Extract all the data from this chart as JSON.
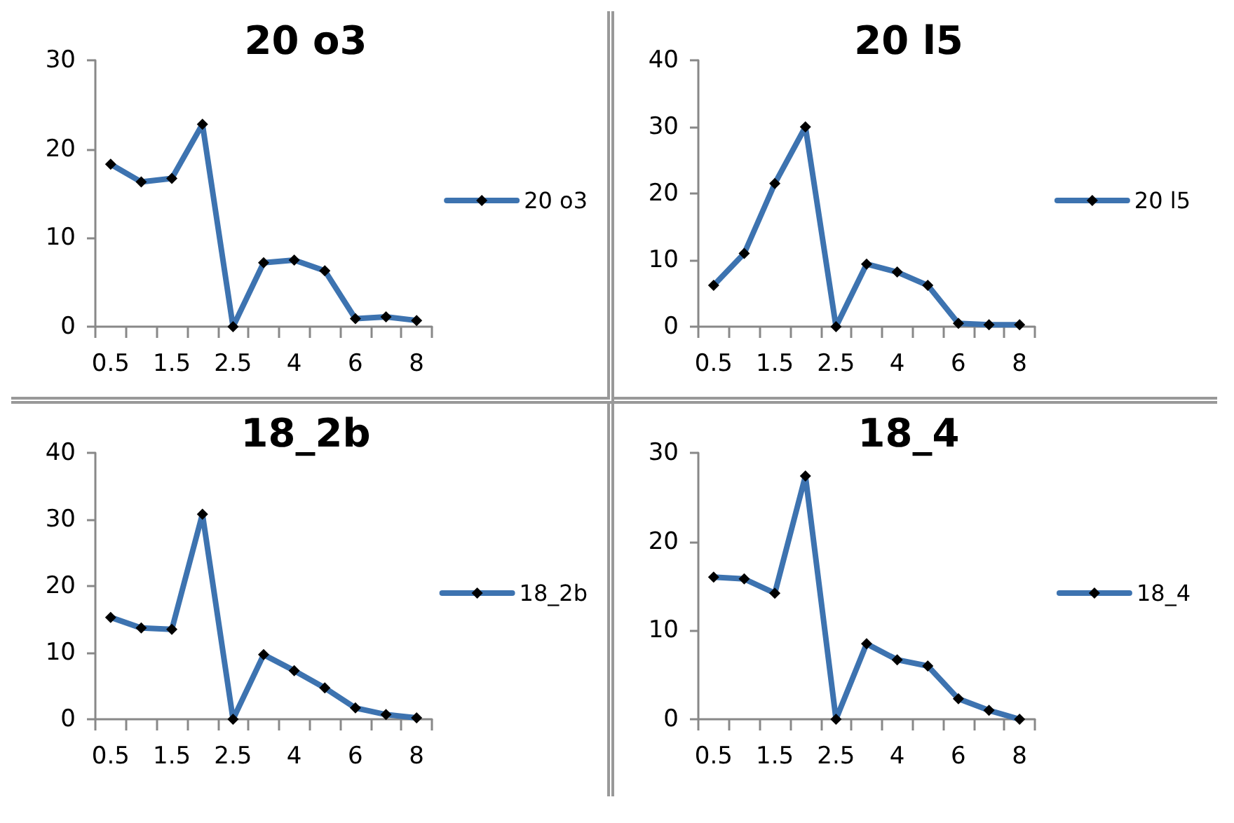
{
  "chart_data": [
    {
      "type": "line",
      "title": "20 o3",
      "categories": [
        "0.5",
        null,
        "1.5",
        null,
        "2.5",
        null,
        "4",
        null,
        "6",
        null,
        "8"
      ],
      "ylim": [
        0,
        30
      ],
      "yticks": [
        0,
        10,
        20,
        30
      ],
      "grid": false,
      "legend": "right",
      "marker": "diamond",
      "series": [
        {
          "name": "20 o3",
          "color": "#3d73b0",
          "values": [
            18.3,
            16.3,
            16.7,
            22.8,
            0,
            7.2,
            7.5,
            6.3,
            0.9,
            1.1,
            0.7
          ]
        }
      ]
    },
    {
      "type": "line",
      "title": "20 l5",
      "categories": [
        "0.5",
        null,
        "1.5",
        null,
        "2.5",
        null,
        "4",
        null,
        "6",
        null,
        "8"
      ],
      "ylim": [
        0,
        40
      ],
      "yticks": [
        0,
        10,
        20,
        30,
        40
      ],
      "grid": false,
      "legend": "right",
      "marker": "diamond",
      "series": [
        {
          "name": "20 l5",
          "color": "#3d73b0",
          "values": [
            6.2,
            11,
            21.5,
            30,
            0,
            9.4,
            8.2,
            6.2,
            0.5,
            0.3,
            0.3
          ]
        }
      ]
    },
    {
      "type": "line",
      "title": "18_2b",
      "categories": [
        "0.5",
        null,
        "1.5",
        null,
        "2.5",
        null,
        "4",
        null,
        "6",
        null,
        "8"
      ],
      "ylim": [
        0,
        40
      ],
      "yticks": [
        0,
        10,
        20,
        30,
        40
      ],
      "grid": false,
      "legend": "right",
      "marker": "diamond",
      "series": [
        {
          "name": "18_2b",
          "color": "#3d73b0",
          "values": [
            15.3,
            13.7,
            13.5,
            30.8,
            0,
            9.7,
            7.3,
            4.7,
            1.7,
            0.7,
            0.2
          ]
        }
      ]
    },
    {
      "type": "line",
      "title": "18_4",
      "categories": [
        "0.5",
        null,
        "1.5",
        null,
        "2.5",
        null,
        "4",
        null,
        "6",
        null,
        "8"
      ],
      "ylim": [
        0,
        30
      ],
      "yticks": [
        0,
        10,
        20,
        30
      ],
      "grid": false,
      "legend": "right",
      "marker": "diamond",
      "series": [
        {
          "name": "18_4",
          "color": "#3d73b0",
          "values": [
            16,
            15.8,
            14.2,
            27.4,
            0,
            8.5,
            6.7,
            6,
            2.3,
            1,
            0
          ]
        }
      ]
    }
  ]
}
